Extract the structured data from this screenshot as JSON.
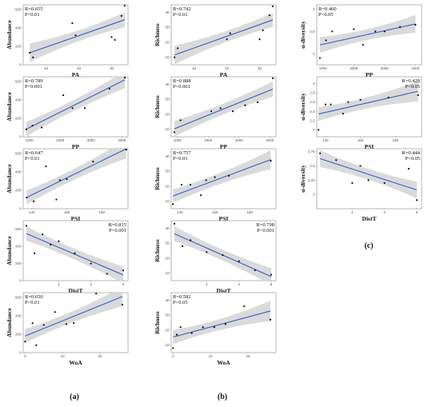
{
  "colors": {
    "fit_line": "#2f5fd0",
    "ci_band": "#d3d3d3",
    "points": "#111111",
    "frame": "#888888"
  },
  "column_labels": [
    "(a)",
    "(b)",
    "(c)"
  ],
  "chart_data": [
    {
      "id": "a1",
      "type": "scatter",
      "col": 0,
      "row": 0,
      "ylabel": "Abundance",
      "xlabel": "PA",
      "r_text": "R=0.655",
      "p_text": "P<0.01",
      "stat_pos": "top-left",
      "xlim": [
        3,
        35
      ],
      "ylim": [
        0,
        650
      ],
      "xticks": [
        10,
        20,
        30
      ],
      "yticks": [
        0,
        200,
        400,
        600
      ],
      "x": [
        5,
        6,
        18,
        19,
        30,
        31,
        33,
        34
      ],
      "y": [
        130,
        80,
        450,
        320,
        300,
        270,
        530,
        640
      ],
      "fit": [
        0.655,
        0.35
      ]
    },
    {
      "id": "b1",
      "type": "scatter",
      "col": 1,
      "row": 0,
      "ylabel": "Richness",
      "xlabel": "PA",
      "r_text": "R=0.742",
      "p_text": "P<0.01",
      "stat_pos": "top-left",
      "xlim": [
        3,
        35
      ],
      "ylim": [
        5,
        45
      ],
      "xticks": [
        10,
        20,
        30
      ],
      "yticks": [
        10,
        20,
        30,
        40
      ],
      "x": [
        4,
        5,
        20,
        21,
        30,
        31,
        33,
        34
      ],
      "y": [
        10,
        16,
        22,
        26,
        22,
        28,
        38,
        44
      ],
      "fit": [
        0.742,
        0.32
      ]
    },
    {
      "id": "c1",
      "type": "scatter",
      "col": 2,
      "row": 0,
      "ylabel": "α-diversity",
      "xlabel": "PP",
      "r_text": "R=0.460",
      "p_text": "P<0.05",
      "stat_pos": "top-left",
      "xlim": [
        800,
        4200
      ],
      "ylim": [
        1.75,
        3.1
      ],
      "xticks": [
        1000,
        2000,
        3000,
        4000
      ],
      "yticks": [
        2.0,
        2.5,
        3.0
      ],
      "x": [
        900,
        1100,
        1300,
        2000,
        2300,
        2700,
        3000,
        3500,
        4000
      ],
      "y": [
        1.9,
        2.3,
        2.5,
        2.55,
        2.2,
        2.5,
        2.5,
        2.6,
        2.65
      ],
      "fit": [
        0.46,
        0.36
      ]
    },
    {
      "id": "a2",
      "type": "scatter",
      "col": 0,
      "row": 1,
      "ylabel": "Abundance",
      "xlabel": "PP",
      "r_text": "R=0.789",
      "p_text": "P<0.001",
      "stat_pos": "top-left",
      "xlim": [
        800,
        4200
      ],
      "ylim": [
        0,
        650
      ],
      "xticks": [
        1000,
        2000,
        3000,
        4000
      ],
      "yticks": [
        0,
        200,
        400,
        600
      ],
      "x": [
        900,
        1100,
        1400,
        2100,
        2400,
        2800,
        3600,
        4100
      ],
      "y": [
        80,
        120,
        100,
        450,
        310,
        310,
        520,
        640
      ],
      "fit": [
        0.789,
        0.3
      ]
    },
    {
      "id": "b2",
      "type": "scatter",
      "col": 1,
      "row": 1,
      "ylabel": "Richness",
      "xlabel": "PP",
      "r_text": "R=0.888",
      "p_text": "P<0.001",
      "stat_pos": "top-left",
      "xlim": [
        800,
        4200
      ],
      "ylim": [
        5,
        45
      ],
      "xticks": [
        1000,
        2000,
        3000,
        4000
      ],
      "yticks": [
        10,
        20,
        30,
        40
      ],
      "x": [
        900,
        1100,
        2100,
        2400,
        2800,
        3200,
        3600,
        4100
      ],
      "y": [
        8,
        16,
        22,
        24,
        22,
        26,
        28,
        44
      ],
      "fit": [
        0.888,
        0.28
      ]
    },
    {
      "id": "c2",
      "type": "scatter",
      "col": 2,
      "row": 1,
      "ylabel": "α-diversity",
      "xlabel": "PSI",
      "r_text": "R=0.428",
      "p_text": "P<0.05",
      "stat_pos": "top-right",
      "xlim": [
        135,
        195
      ],
      "ylim": [
        1.85,
        3.15
      ],
      "xticks": [
        140,
        160,
        180
      ],
      "yticks": [
        2.0,
        2.2,
        2.4,
        2.6,
        2.8,
        3.0
      ],
      "x": [
        136,
        140,
        143,
        150,
        153,
        160,
        176,
        193
      ],
      "y": [
        2.0,
        2.55,
        2.55,
        2.35,
        2.6,
        2.65,
        2.7,
        2.75
      ],
      "fit": [
        0.428,
        0.36
      ]
    },
    {
      "id": "a3",
      "type": "scatter",
      "col": 0,
      "row": 2,
      "ylabel": "Abundance",
      "xlabel": "PSI",
      "r_text": "R=0.647",
      "p_text": "P<0.01",
      "stat_pos": "top-left",
      "xlim": [
        135,
        195
      ],
      "ylim": [
        0,
        650
      ],
      "xticks": [
        140,
        160,
        180
      ],
      "yticks": [
        0,
        200,
        400,
        600
      ],
      "x": [
        137,
        141,
        148,
        154,
        156,
        160,
        175,
        194
      ],
      "y": [
        120,
        80,
        460,
        100,
        310,
        320,
        510,
        640
      ],
      "fit": [
        0.647,
        0.32
      ]
    },
    {
      "id": "b3",
      "type": "scatter",
      "col": 1,
      "row": 2,
      "ylabel": "Richness",
      "xlabel": "PSI",
      "r_text": "R=0.757",
      "p_text": "P<0.01",
      "stat_pos": "top-left",
      "xlim": [
        135,
        195
      ],
      "ylim": [
        5,
        45
      ],
      "xticks": [
        140,
        160,
        180
      ],
      "yticks": [
        10,
        20,
        30,
        40
      ],
      "x": [
        136,
        141,
        146,
        152,
        155,
        160,
        168,
        192
      ],
      "y": [
        8,
        21,
        21,
        14,
        24,
        26,
        27,
        37
      ],
      "fit": [
        0.757,
        0.3
      ]
    },
    {
      "id": "c3",
      "type": "scatter",
      "col": 2,
      "row": 2,
      "ylabel": "α-diversity",
      "xlabel": "DistT",
      "r_text": "R=0.444",
      "p_text": "P<0.05",
      "stat_pos": "top-right",
      "xlim": [
        -0.2,
        6.3
      ],
      "ylim": [
        1.75,
        2.8
      ],
      "xticks": [
        2,
        4,
        6
      ],
      "yticks": [
        2.0,
        2.25,
        2.5,
        2.75
      ],
      "x": [
        0,
        1,
        2,
        2.5,
        3,
        4,
        5.5,
        6
      ],
      "y": [
        2.72,
        2.6,
        2.2,
        2.5,
        2.25,
        2.2,
        2.45,
        1.9
      ],
      "fit": [
        -0.444,
        0.36
      ]
    },
    {
      "id": "a4",
      "type": "scatter",
      "col": 0,
      "row": 3,
      "ylabel": "Abundance",
      "xlabel": "DistT",
      "r_text": "R=0.815",
      "p_text": "P<0.001",
      "stat_pos": "top-right",
      "xlim": [
        -0.2,
        6.3
      ],
      "ylim": [
        0,
        700
      ],
      "xticks": [
        2,
        4,
        6
      ],
      "yticks": [
        0,
        200,
        400,
        600
      ],
      "x": [
        0,
        0.5,
        1,
        1.5,
        2,
        3,
        4,
        5,
        6
      ],
      "y": [
        640,
        320,
        540,
        420,
        460,
        320,
        200,
        80,
        120
      ],
      "fit": [
        -0.815,
        0.28
      ]
    },
    {
      "id": "b4",
      "type": "scatter",
      "col": 1,
      "row": 3,
      "ylabel": "Richness",
      "xlabel": "DistT",
      "r_text": "R=0.798",
      "p_text": "P<0.001",
      "stat_pos": "top-right",
      "xlim": [
        -0.2,
        6.3
      ],
      "ylim": [
        5,
        45
      ],
      "xticks": [
        2,
        4,
        6
      ],
      "yticks": [
        10,
        20,
        30,
        40
      ],
      "x": [
        0,
        0.5,
        1,
        2,
        3,
        4,
        5,
        6
      ],
      "y": [
        43,
        28,
        32,
        24,
        22,
        18,
        12,
        9
      ],
      "fit": [
        -0.798,
        0.3
      ]
    },
    {
      "id": "a5",
      "type": "scatter",
      "col": 0,
      "row": 4,
      "ylabel": "Abundance",
      "xlabel": "WoA",
      "r_text": "R=0.650",
      "p_text": "P<0.01",
      "stat_pos": "top-left",
      "xlim": [
        -0.5,
        27.5
      ],
      "ylim": [
        0,
        650
      ],
      "xticks": [
        0,
        10,
        20
      ],
      "yticks": [
        0,
        200,
        400,
        600
      ],
      "x": [
        0,
        2,
        3,
        5,
        8,
        11,
        13,
        19,
        26
      ],
      "y": [
        120,
        320,
        80,
        300,
        440,
        310,
        320,
        640,
        520
      ],
      "fit": [
        0.65,
        0.34
      ]
    },
    {
      "id": "b5",
      "type": "scatter",
      "col": 1,
      "row": 4,
      "ylabel": "Richness",
      "xlabel": "WoA",
      "r_text": "R=0.582",
      "p_text": "P<0.05",
      "stat_pos": "top-left",
      "xlim": [
        -0.5,
        27.5
      ],
      "ylim": [
        5,
        45
      ],
      "xticks": [
        0,
        10,
        20
      ],
      "yticks": [
        10,
        20,
        30,
        40
      ],
      "x": [
        0,
        1,
        2,
        5,
        8,
        11,
        14,
        19,
        26
      ],
      "y": [
        8,
        17,
        22,
        18,
        22,
        22,
        24,
        36,
        27
      ],
      "fit": [
        0.582,
        0.36
      ]
    }
  ]
}
